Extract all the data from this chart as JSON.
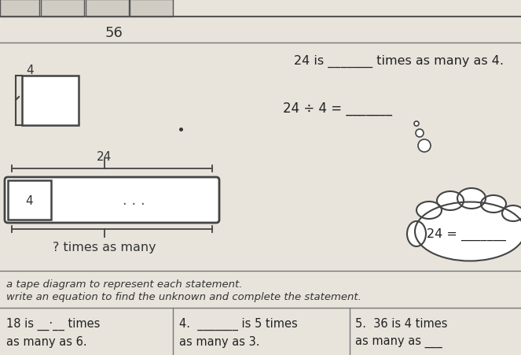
{
  "bg_color": "#e8e4dc",
  "title_num": "56",
  "line1_text": "24 is _______ times as many as 4.",
  "line2_left": "24 ÷ 4 = _______",
  "small_box_label": "4",
  "tape_label_24": "24",
  "tape_box_4_label": "4",
  "tape_dots": ". . .",
  "tape_bottom_label": "? times as many",
  "cloud_text_left": "24 = _______",
  "dot_sizes": [
    4,
    6,
    9
  ],
  "bottom_line1": "a tape diagram to represent each statement.",
  "bottom_line2": "write an equation to find the unknown and complete the statement.",
  "col1_line1": "18 is __·__ times",
  "col1_line2": "as many as 6.",
  "col2_num": "4.",
  "col2_line1": "_______ is 5 times",
  "col2_line2": "as many as 3.",
  "col3_num": "5.",
  "col3_line1": "36 is 4 times",
  "col3_line2": "as many as ___"
}
